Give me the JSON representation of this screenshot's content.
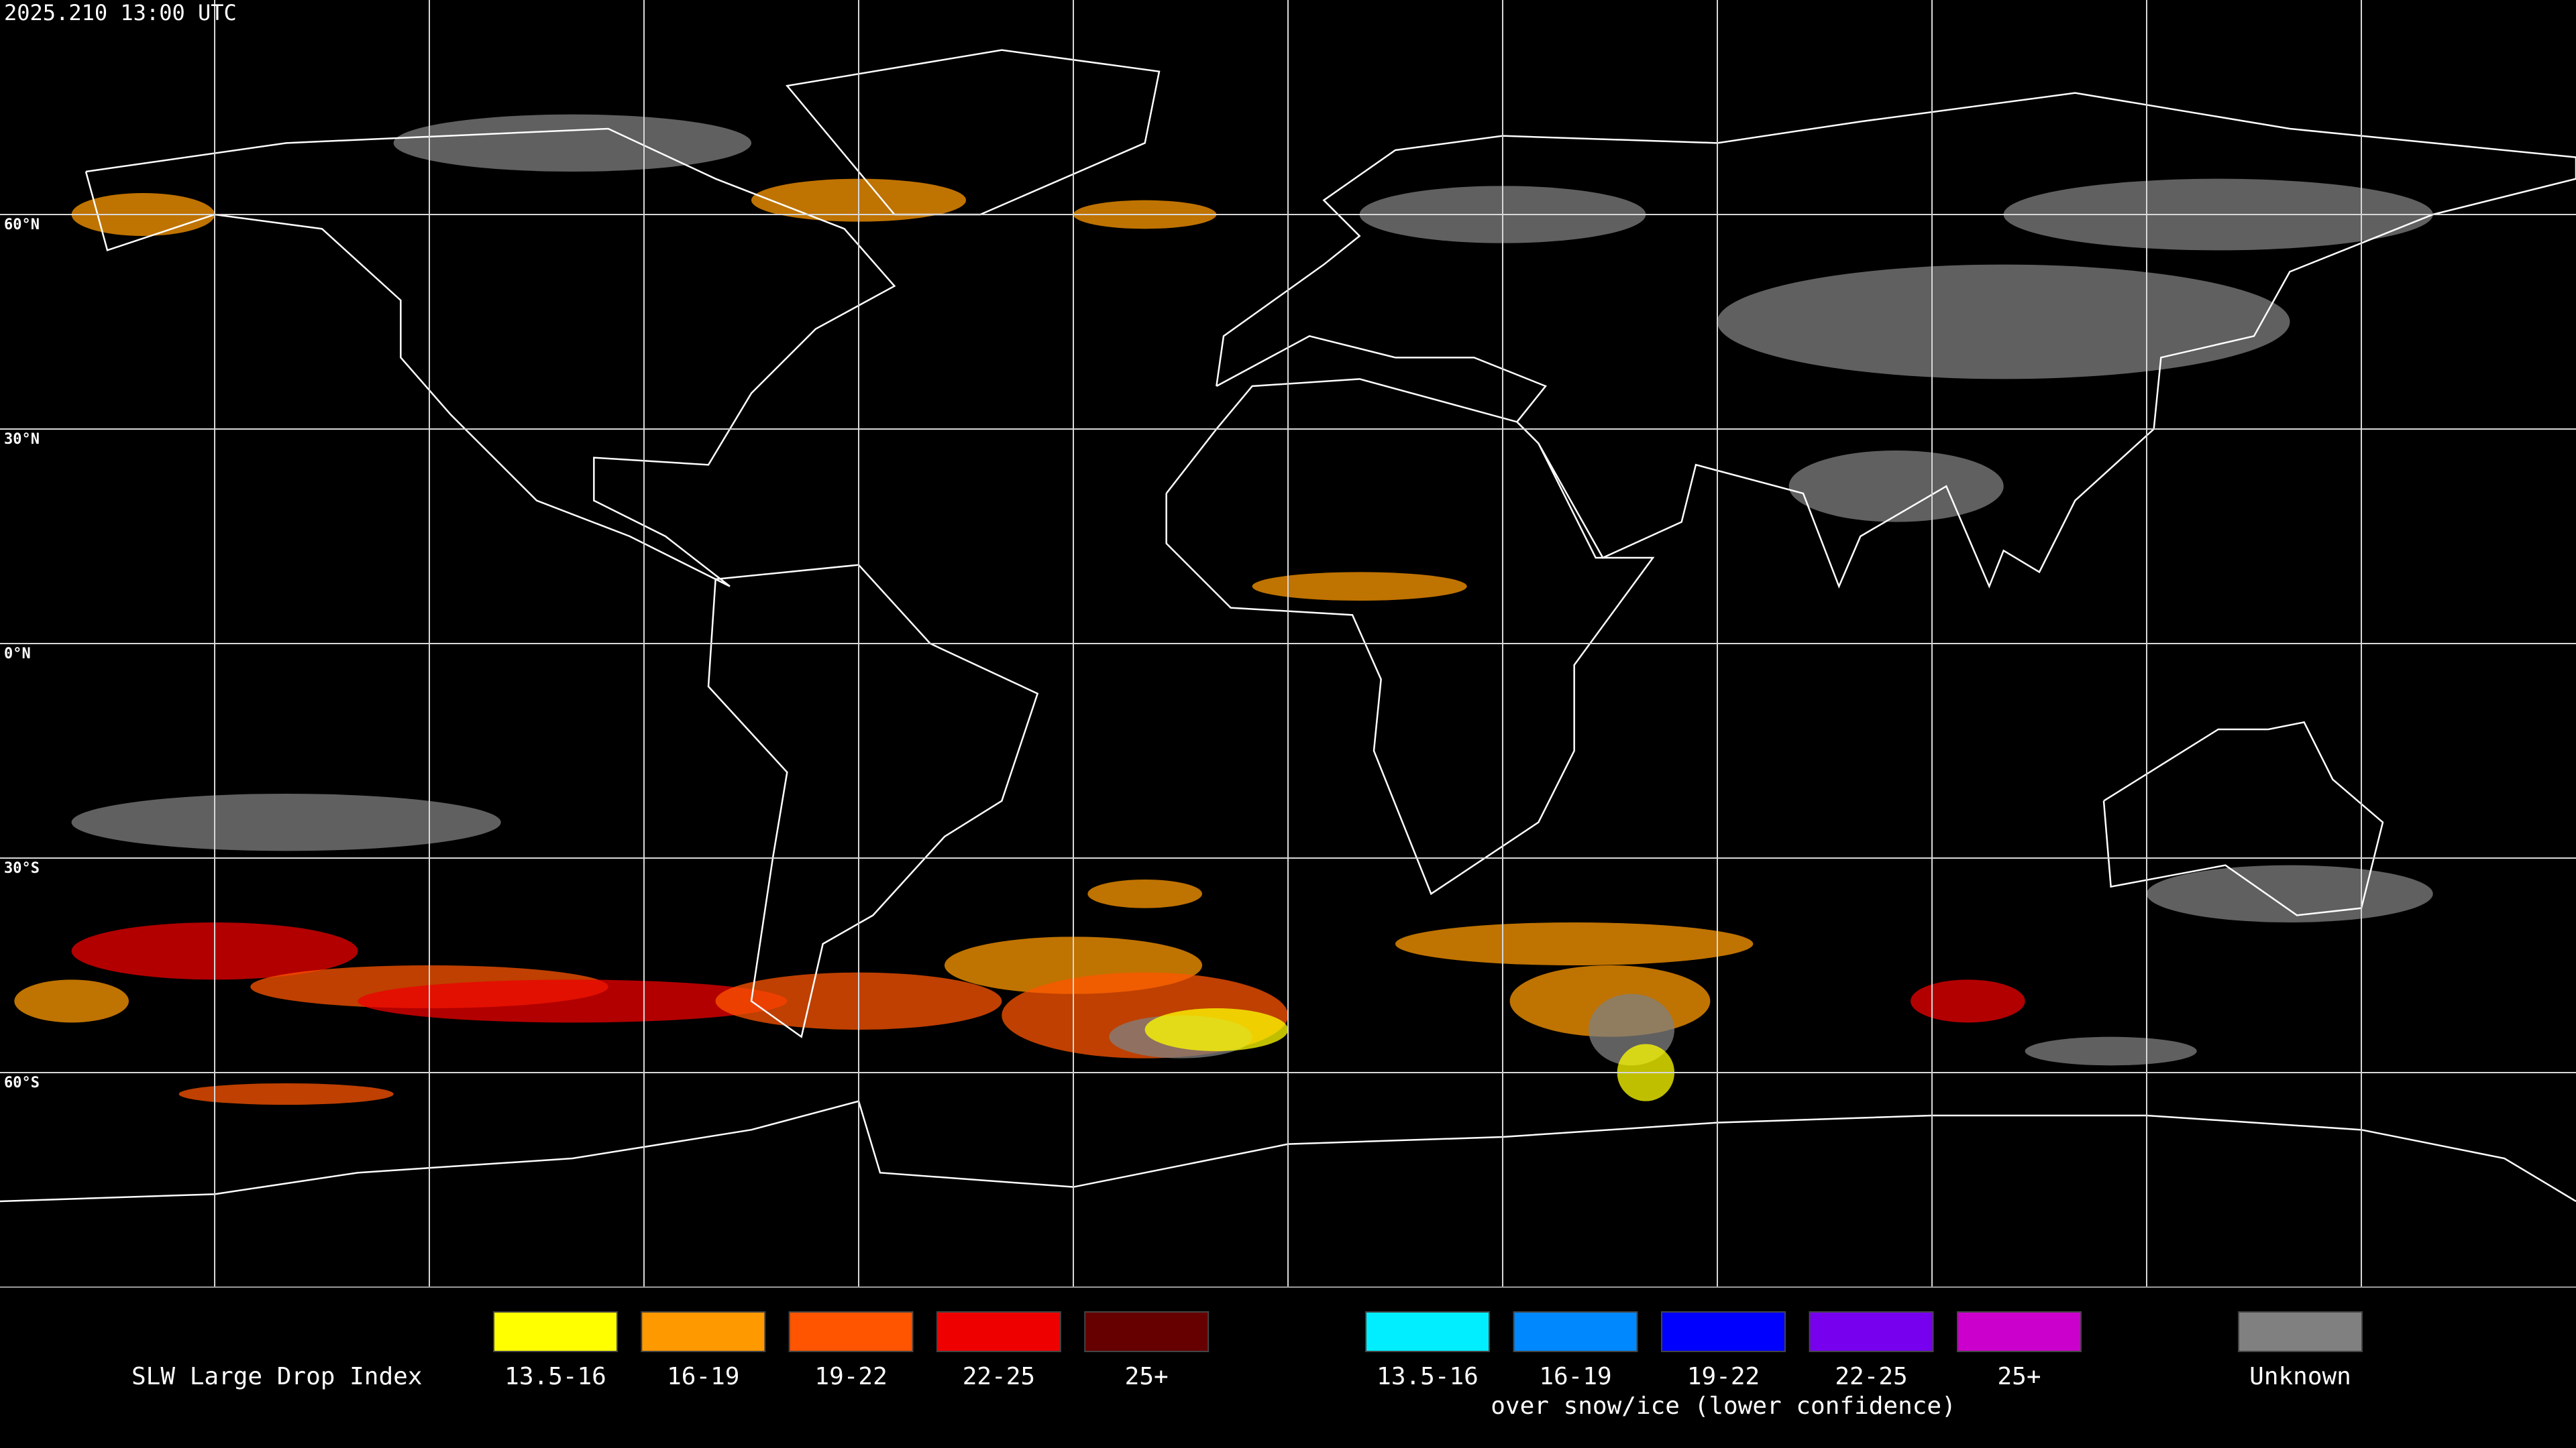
{
  "timestamp": "2025.210 13:00 UTC",
  "latitude_labels": [
    "60°N",
    "30°N",
    "0°N",
    "30°S",
    "60°S"
  ],
  "legend": {
    "title": "SLW Large Drop Index",
    "items": [
      {
        "label": "13.5-16",
        "color": "#ffff00"
      },
      {
        "label": "16-19",
        "color": "#ff9900"
      },
      {
        "label": "19-22",
        "color": "#ff5500"
      },
      {
        "label": "22-25",
        "color": "#ee0000"
      },
      {
        "label": "25+",
        "color": "#660000"
      }
    ],
    "snow_items": [
      {
        "label": "13.5-16",
        "color": "#00eeff"
      },
      {
        "label": "16-19",
        "color": "#0088ff"
      },
      {
        "label": "19-22",
        "color": "#0000ff"
      },
      {
        "label": "22-25",
        "color": "#7700ee"
      },
      {
        "label": "25+",
        "color": "#cc00cc"
      }
    ],
    "snow_caption": "over snow/ice (lower confidence)",
    "unknown": {
      "label": "Unknown",
      "color": "#808080"
    }
  }
}
